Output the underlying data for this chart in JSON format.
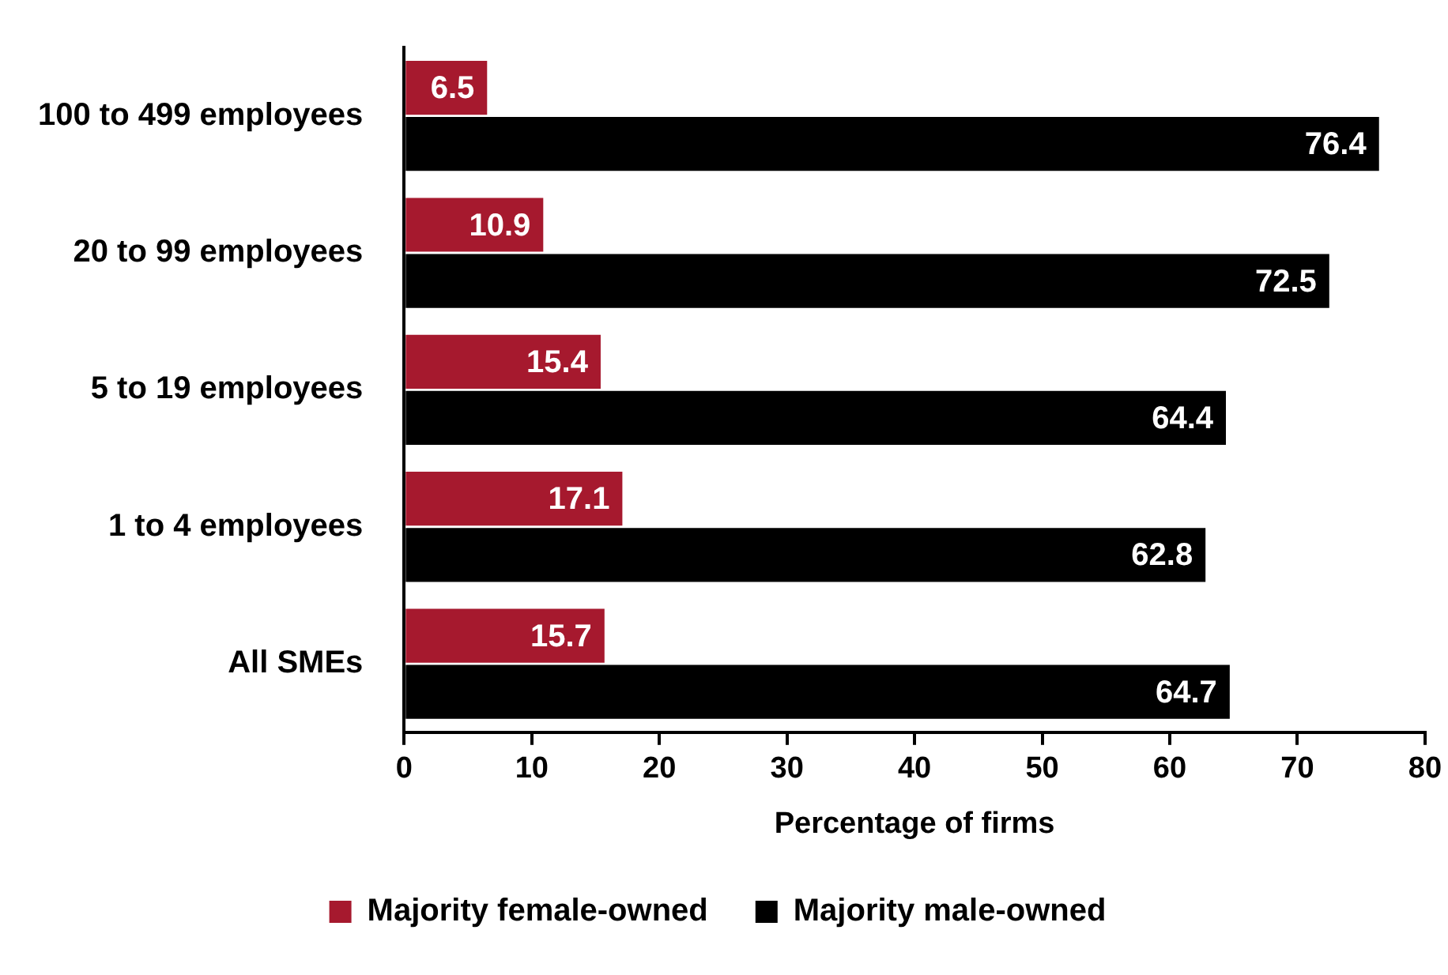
{
  "chart_data": {
    "type": "bar",
    "orientation": "horizontal",
    "xlabel": "Percentage of firms",
    "categories": [
      "100 to 499 employees",
      "20 to 99 employees",
      "5 to 19 employees",
      "1 to 4 employees",
      "All SMEs"
    ],
    "series": [
      {
        "name": "Majority female-owned",
        "color": "#a6192e",
        "values": [
          6.5,
          10.9,
          15.4,
          17.1,
          15.7
        ]
      },
      {
        "name": "Majority male-owned",
        "color": "#000000",
        "values": [
          76.4,
          72.5,
          64.4,
          62.8,
          64.7
        ]
      }
    ],
    "xlim": [
      0,
      80
    ],
    "xticks": [
      0,
      10,
      20,
      30,
      40,
      50,
      60,
      70,
      80
    ],
    "data_labels": true,
    "legend": "bottom"
  }
}
